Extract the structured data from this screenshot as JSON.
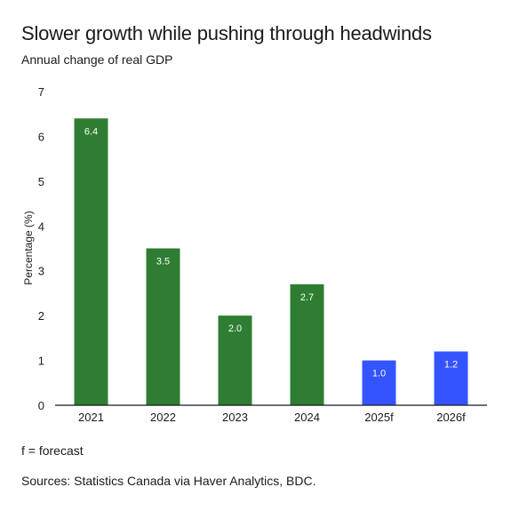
{
  "title": "Slower growth while pushing through headwinds",
  "subtitle": "Annual change of real GDP",
  "footnote": "f = forecast",
  "sources": "Sources: Statistics Canada via Haver Analytics, BDC.",
  "colors": {
    "actual": "#2e7d32",
    "forecast": "#3454ff",
    "axis": "#1a1a1a",
    "label": "#ffffff"
  },
  "chart_data": {
    "type": "bar",
    "title": "Slower growth while pushing through headwinds",
    "subtitle": "Annual change of real GDP",
    "xlabel": "",
    "ylabel": "Percentage (%)",
    "ylim": [
      0,
      7
    ],
    "yticks": [
      0,
      1,
      2,
      3,
      4,
      5,
      6,
      7
    ],
    "grid": false,
    "categories": [
      "2021",
      "2022",
      "2023",
      "2024",
      "2025f",
      "2026f"
    ],
    "values": [
      6.4,
      3.5,
      2.0,
      2.7,
      1.0,
      1.2
    ],
    "value_labels": [
      "6.4",
      "3.5",
      "2.0",
      "2.7",
      "1.0",
      "1.2"
    ],
    "kind": [
      "actual",
      "actual",
      "actual",
      "actual",
      "forecast",
      "forecast"
    ]
  }
}
